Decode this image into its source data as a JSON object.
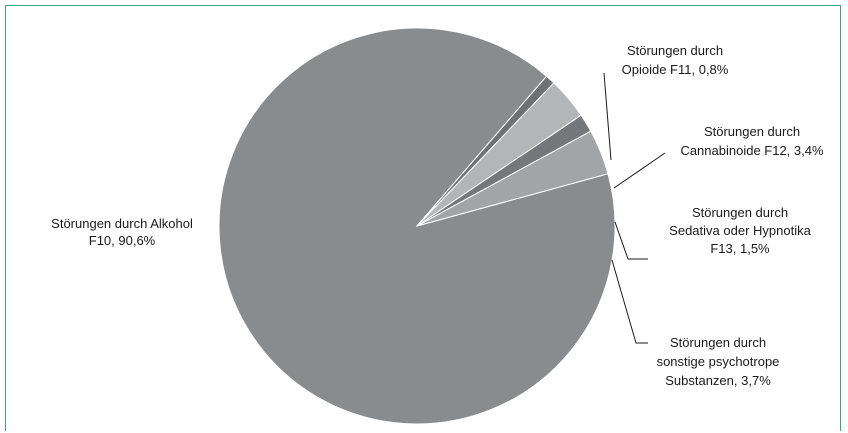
{
  "chart_data": {
    "type": "pie",
    "slices": [
      {
        "label_lines": [
          "Störungen durch Alkohol",
          "F10, 90,6%"
        ],
        "value": 90.6,
        "color": "#8a8b8d"
      },
      {
        "label_lines": [
          "Störungen durch",
          "Opioide F11, 0,8%"
        ],
        "value": 0.8,
        "color": "#6f7072"
      },
      {
        "label_lines": [
          "Störungen durch",
          "Cannabinoide F12, 3,4%"
        ],
        "value": 3.4,
        "color": "#b4b5b7"
      },
      {
        "label_lines": [
          "Störungen durch",
          "Sedativa oder  Hypnotika",
          "F13, 1,5%"
        ],
        "value": 1.5,
        "color": "#76777a"
      },
      {
        "label_lines": [
          "Störungen durch",
          "sonstige psychotrope",
          "Substanzen, 3,7%"
        ],
        "value": 3.7,
        "color": "#a3a4a6"
      }
    ]
  }
}
